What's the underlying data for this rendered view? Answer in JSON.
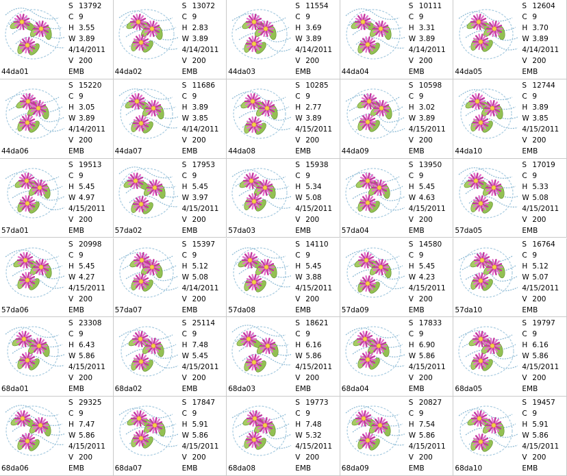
{
  "field_labels": {
    "stitches": "S",
    "colors": "C",
    "height": "H",
    "width": "W",
    "version": "V"
  },
  "items": [
    {
      "name": "44da01",
      "stitches": "13792",
      "colors": "9",
      "height": "3.55",
      "width": "3.89",
      "date": "4/14/2011",
      "version": "200",
      "format": "EMB"
    },
    {
      "name": "44da02",
      "stitches": "13072",
      "colors": "9",
      "height": "2.83",
      "width": "3.89",
      "date": "4/14/2011",
      "version": "200",
      "format": "EMB"
    },
    {
      "name": "44da03",
      "stitches": "11554",
      "colors": "9",
      "height": "3.69",
      "width": "3.89",
      "date": "4/14/2011",
      "version": "200",
      "format": "EMB"
    },
    {
      "name": "44da04",
      "stitches": "10111",
      "colors": "9",
      "height": "3.31",
      "width": "3.89",
      "date": "4/14/2011",
      "version": "200",
      "format": "EMB"
    },
    {
      "name": "44da05",
      "stitches": "12604",
      "colors": "9",
      "height": "3.70",
      "width": "3.89",
      "date": "4/14/2011",
      "version": "200",
      "format": "EMB"
    },
    {
      "name": "44da06",
      "stitches": "15220",
      "colors": "9",
      "height": "3.05",
      "width": "3.89",
      "date": "4/14/2011",
      "version": "200",
      "format": "EMB"
    },
    {
      "name": "44da07",
      "stitches": "11686",
      "colors": "9",
      "height": "3.89",
      "width": "3.85",
      "date": "4/14/2011",
      "version": "200",
      "format": "EMB"
    },
    {
      "name": "44da08",
      "stitches": "10285",
      "colors": "9",
      "height": "2.77",
      "width": "3.89",
      "date": "4/15/2011",
      "version": "200",
      "format": "EMB"
    },
    {
      "name": "44da09",
      "stitches": "10598",
      "colors": "9",
      "height": "3.02",
      "width": "3.89",
      "date": "4/15/2011",
      "version": "200",
      "format": "EMB"
    },
    {
      "name": "44da10",
      "stitches": "12744",
      "colors": "9",
      "height": "3.89",
      "width": "3.85",
      "date": "4/15/2011",
      "version": "200",
      "format": "EMB"
    },
    {
      "name": "57da01",
      "stitches": "19513",
      "colors": "9",
      "height": "5.45",
      "width": "4.97",
      "date": "4/15/2011",
      "version": "200",
      "format": "EMB"
    },
    {
      "name": "57da02",
      "stitches": "17953",
      "colors": "9",
      "height": "5.45",
      "width": "3.97",
      "date": "4/15/2011",
      "version": "200",
      "format": "EMB"
    },
    {
      "name": "57da03",
      "stitches": "15938",
      "colors": "9",
      "height": "5.34",
      "width": "5.08",
      "date": "4/15/2011",
      "version": "200",
      "format": "EMB"
    },
    {
      "name": "57da04",
      "stitches": "13950",
      "colors": "9",
      "height": "5.45",
      "width": "4.63",
      "date": "4/15/2011",
      "version": "200",
      "format": "EMB"
    },
    {
      "name": "57da05",
      "stitches": "17019",
      "colors": "9",
      "height": "5.33",
      "width": "5.08",
      "date": "4/15/2011",
      "version": "200",
      "format": "EMB"
    },
    {
      "name": "57da06",
      "stitches": "20998",
      "colors": "9",
      "height": "5.45",
      "width": "4.27",
      "date": "4/15/2011",
      "version": "200",
      "format": "EMB"
    },
    {
      "name": "57da07",
      "stitches": "15397",
      "colors": "9",
      "height": "5.12",
      "width": "5.08",
      "date": "4/14/2011",
      "version": "200",
      "format": "EMB"
    },
    {
      "name": "57da08",
      "stitches": "14110",
      "colors": "9",
      "height": "5.45",
      "width": "3.88",
      "date": "4/15/2011",
      "version": "200",
      "format": "EMB"
    },
    {
      "name": "57da09",
      "stitches": "14580",
      "colors": "9",
      "height": "5.45",
      "width": "4.23",
      "date": "4/15/2011",
      "version": "200",
      "format": "EMB"
    },
    {
      "name": "57da10",
      "stitches": "16764",
      "colors": "9",
      "height": "5.12",
      "width": "5.07",
      "date": "4/15/2011",
      "version": "200",
      "format": "EMB"
    },
    {
      "name": "68da01",
      "stitches": "23308",
      "colors": "9",
      "height": "6.43",
      "width": "5.86",
      "date": "4/15/2011",
      "version": "200",
      "format": "EMB"
    },
    {
      "name": "68da02",
      "stitches": "25114",
      "colors": "9",
      "height": "7.48",
      "width": "5.45",
      "date": "4/15/2011",
      "version": "200",
      "format": "EMB"
    },
    {
      "name": "68da03",
      "stitches": "18621",
      "colors": "9",
      "height": "6.16",
      "width": "5.86",
      "date": "4/15/2011",
      "version": "200",
      "format": "EMB"
    },
    {
      "name": "68da04",
      "stitches": "17833",
      "colors": "9",
      "height": "6.90",
      "width": "5.86",
      "date": "4/15/2011",
      "version": "200",
      "format": "EMB"
    },
    {
      "name": "68da05",
      "stitches": "19797",
      "colors": "9",
      "height": "6.16",
      "width": "5.86",
      "date": "4/15/2011",
      "version": "200",
      "format": "EMB"
    },
    {
      "name": "68da06",
      "stitches": "29325",
      "colors": "9",
      "height": "7.47",
      "width": "5.86",
      "date": "4/15/2011",
      "version": "200",
      "format": "EMB"
    },
    {
      "name": "68da07",
      "stitches": "17847",
      "colors": "9",
      "height": "5.91",
      "width": "5.86",
      "date": "4/15/2011",
      "version": "200",
      "format": "EMB"
    },
    {
      "name": "68da08",
      "stitches": "19773",
      "colors": "9",
      "height": "7.48",
      "width": "5.32",
      "date": "4/15/2011",
      "version": "200",
      "format": "EMB"
    },
    {
      "name": "68da09",
      "stitches": "20827",
      "colors": "9",
      "height": "7.54",
      "width": "5.86",
      "date": "4/15/2011",
      "version": "200",
      "format": "EMB"
    },
    {
      "name": "68da10",
      "stitches": "19457",
      "colors": "9",
      "height": "5.91",
      "width": "5.86",
      "date": "4/15/2011",
      "version": "200",
      "format": "EMB"
    }
  ]
}
